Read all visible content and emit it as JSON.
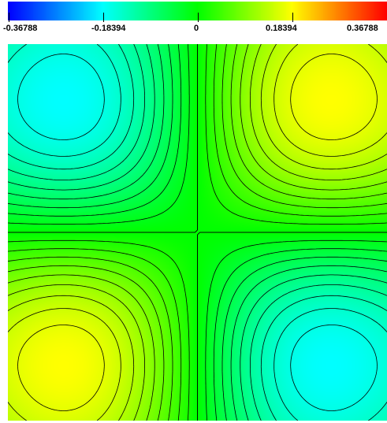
{
  "colorbar": {
    "min": -0.36788,
    "max": 0.36788,
    "tick_labels": [
      "-0.36788",
      "-0.18394",
      "0",
      "0.18394",
      "0.36788"
    ],
    "colormap": [
      "#0000ff",
      "#00ffff",
      "#00ff00",
      "#ffff00",
      "#ff0000"
    ]
  },
  "field": {
    "function": "x*y*exp(-(x^2+y^2))",
    "domain_x": [
      -1,
      1
    ],
    "domain_y": [
      -1,
      1
    ],
    "contour_levels": 40,
    "contour_color": "#000000"
  }
}
